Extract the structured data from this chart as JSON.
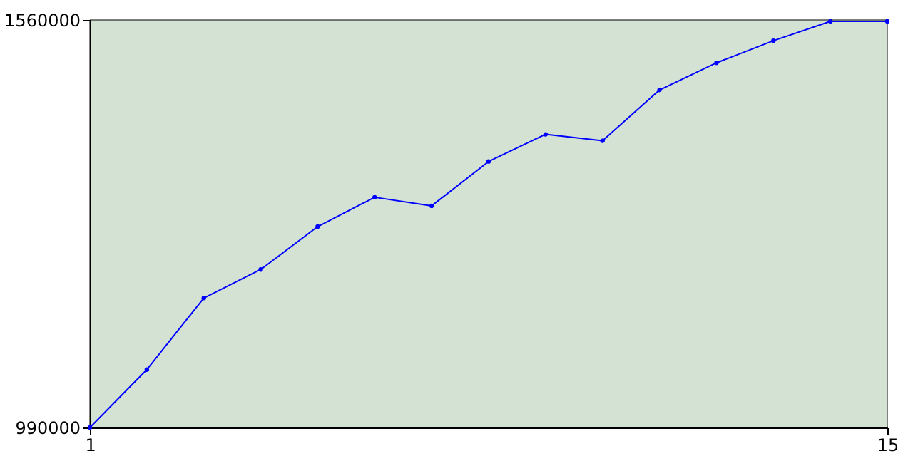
{
  "chart_data": {
    "type": "line",
    "x": [
      1,
      2,
      3,
      4,
      5,
      6,
      7,
      8,
      9,
      10,
      11,
      12,
      13,
      14,
      15
    ],
    "series": [
      {
        "color": "#0000ff",
        "values": [
          990000,
          1071000,
          1171000,
          1211000,
          1271000,
          1312000,
          1300000,
          1362000,
          1400000,
          1391000,
          1462000,
          1500000,
          1531000,
          1558000,
          1558000
        ]
      }
    ],
    "xlim": [
      1,
      15
    ],
    "ylim": [
      990000,
      1560000
    ],
    "xticks": [
      1,
      15
    ],
    "yticks": [
      990000,
      1560000
    ],
    "grid": false,
    "legend": false,
    "marker": "circle",
    "line_style": "solid"
  }
}
